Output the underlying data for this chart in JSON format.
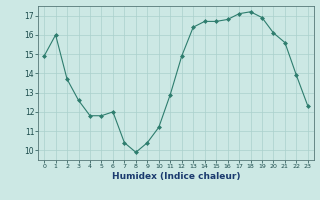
{
  "x": [
    0,
    1,
    2,
    3,
    4,
    5,
    6,
    7,
    8,
    9,
    10,
    11,
    12,
    13,
    14,
    15,
    16,
    17,
    18,
    19,
    20,
    21,
    22,
    23
  ],
  "y": [
    14.9,
    16.0,
    13.7,
    12.6,
    11.8,
    11.8,
    12.0,
    10.4,
    9.9,
    10.4,
    11.2,
    12.9,
    14.9,
    16.4,
    16.7,
    16.7,
    16.8,
    17.1,
    17.2,
    16.9,
    16.1,
    15.6,
    13.9,
    12.3
  ],
  "line_color": "#2e7d6e",
  "marker": "D",
  "marker_size": 2.0,
  "bg_color": "#cce8e4",
  "grid_color": "#aad0cc",
  "xlabel": "Humidex (Indice chaleur)",
  "ylim": [
    9.5,
    17.5
  ],
  "xlim": [
    -0.5,
    23.5
  ],
  "yticks": [
    10,
    11,
    12,
    13,
    14,
    15,
    16,
    17
  ],
  "xticks": [
    0,
    1,
    2,
    3,
    4,
    5,
    6,
    7,
    8,
    9,
    10,
    11,
    12,
    13,
    14,
    15,
    16,
    17,
    18,
    19,
    20,
    21,
    22,
    23
  ]
}
